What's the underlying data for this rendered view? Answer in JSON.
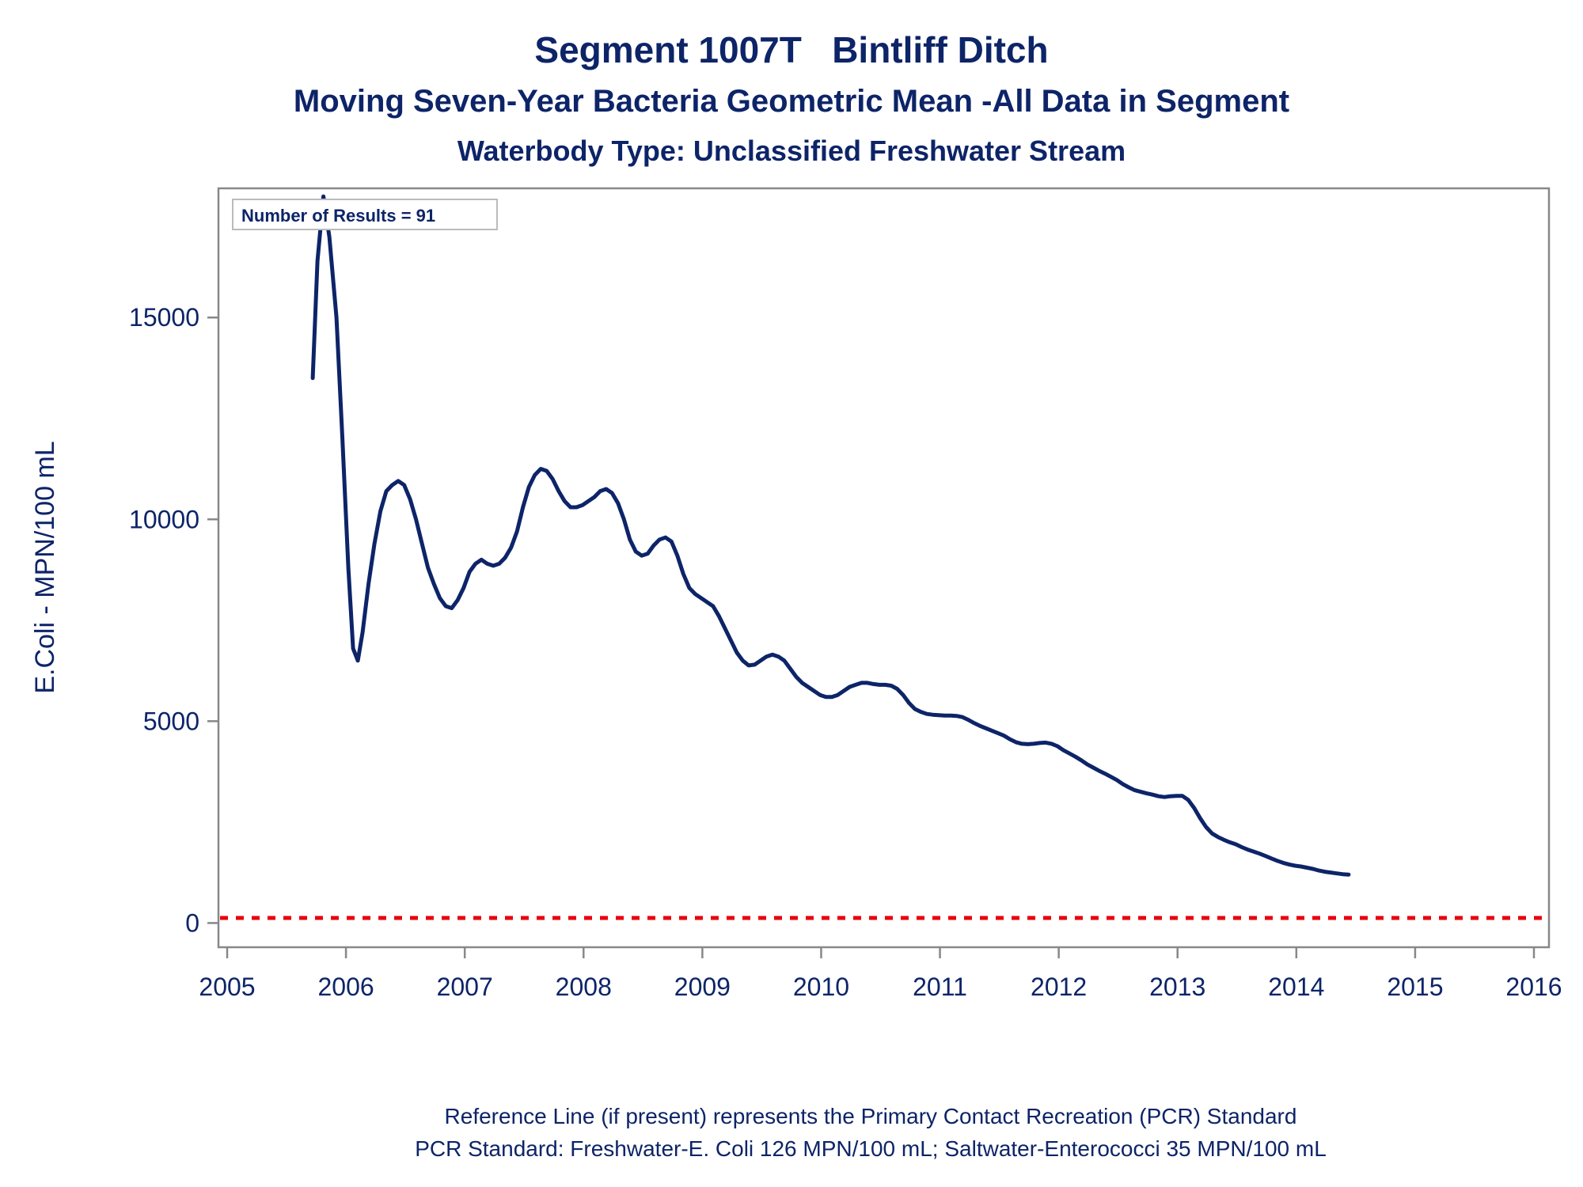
{
  "header": {
    "title": "Segment 1007T   Bintliff Ditch",
    "subtitle": "Moving Seven-Year Bacteria Geometric Mean -All Data in Segment",
    "subtitle2": "Waterbody Type: Unclassified Freshwater Stream"
  },
  "footer": {
    "line1": "Reference Line (if present) represents the Primary Contact Recreation (PCR) Standard",
    "line2": "PCR Standard: Freshwater-E. Coli 126 MPN/100 mL; Saltwater-Enterococci 35 MPN/100 mL"
  },
  "chart_data": {
    "type": "line",
    "ylabel": "E.Coli - MPN/100 mL",
    "xlabel": "",
    "annotation": "Number of Results = 91",
    "xlim": [
      2005,
      2016
    ],
    "ylim": [
      -600,
      18200
    ],
    "x_ticks": [
      "2005",
      "2006",
      "2007",
      "2008",
      "2009",
      "2010",
      "2011",
      "2012",
      "2013",
      "2014",
      "2015",
      "2016"
    ],
    "y_ticks": [
      0,
      5000,
      10000,
      15000
    ],
    "reference_line": {
      "value": 126,
      "color": "#e8000b",
      "style": "dashed"
    },
    "colors": {
      "line": "#0d2468",
      "axis": "#888888",
      "tick_text": "#0d2468"
    },
    "series": [
      {
        "points": [
          [
            2005.72,
            13500
          ],
          [
            2005.76,
            16400
          ],
          [
            2005.81,
            18000
          ],
          [
            2005.86,
            17000
          ],
          [
            2005.92,
            15000
          ],
          [
            2005.97,
            12000
          ],
          [
            2006.02,
            8800
          ],
          [
            2006.06,
            6800
          ],
          [
            2006.1,
            6500
          ],
          [
            2006.14,
            7200
          ],
          [
            2006.19,
            8400
          ],
          [
            2006.24,
            9400
          ],
          [
            2006.29,
            10200
          ],
          [
            2006.34,
            10700
          ],
          [
            2006.39,
            10850
          ],
          [
            2006.44,
            10950
          ],
          [
            2006.49,
            10850
          ],
          [
            2006.54,
            10500
          ],
          [
            2006.59,
            10000
          ],
          [
            2006.64,
            9400
          ],
          [
            2006.69,
            8800
          ],
          [
            2006.74,
            8400
          ],
          [
            2006.79,
            8050
          ],
          [
            2006.84,
            7850
          ],
          [
            2006.89,
            7800
          ],
          [
            2006.94,
            8000
          ],
          [
            2006.99,
            8300
          ],
          [
            2007.04,
            8700
          ],
          [
            2007.09,
            8900
          ],
          [
            2007.14,
            9000
          ],
          [
            2007.19,
            8900
          ],
          [
            2007.24,
            8850
          ],
          [
            2007.29,
            8900
          ],
          [
            2007.34,
            9050
          ],
          [
            2007.39,
            9300
          ],
          [
            2007.44,
            9700
          ],
          [
            2007.49,
            10300
          ],
          [
            2007.54,
            10800
          ],
          [
            2007.59,
            11100
          ],
          [
            2007.64,
            11250
          ],
          [
            2007.69,
            11200
          ],
          [
            2007.74,
            11000
          ],
          [
            2007.79,
            10700
          ],
          [
            2007.84,
            10450
          ],
          [
            2007.89,
            10300
          ],
          [
            2007.94,
            10300
          ],
          [
            2007.99,
            10350
          ],
          [
            2008.04,
            10450
          ],
          [
            2008.09,
            10550
          ],
          [
            2008.14,
            10700
          ],
          [
            2008.19,
            10750
          ],
          [
            2008.24,
            10650
          ],
          [
            2008.29,
            10400
          ],
          [
            2008.34,
            10000
          ],
          [
            2008.39,
            9500
          ],
          [
            2008.44,
            9200
          ],
          [
            2008.49,
            9100
          ],
          [
            2008.54,
            9150
          ],
          [
            2008.59,
            9350
          ],
          [
            2008.64,
            9500
          ],
          [
            2008.69,
            9550
          ],
          [
            2008.74,
            9450
          ],
          [
            2008.79,
            9100
          ],
          [
            2008.84,
            8650
          ],
          [
            2008.89,
            8300
          ],
          [
            2008.94,
            8150
          ],
          [
            2008.99,
            8050
          ],
          [
            2009.04,
            7950
          ],
          [
            2009.09,
            7850
          ],
          [
            2009.14,
            7600
          ],
          [
            2009.19,
            7300
          ],
          [
            2009.24,
            7000
          ],
          [
            2009.29,
            6700
          ],
          [
            2009.34,
            6500
          ],
          [
            2009.39,
            6380
          ],
          [
            2009.44,
            6400
          ],
          [
            2009.49,
            6500
          ],
          [
            2009.54,
            6600
          ],
          [
            2009.59,
            6650
          ],
          [
            2009.64,
            6600
          ],
          [
            2009.69,
            6500
          ],
          [
            2009.74,
            6300
          ],
          [
            2009.79,
            6100
          ],
          [
            2009.84,
            5950
          ],
          [
            2009.89,
            5850
          ],
          [
            2009.94,
            5750
          ],
          [
            2009.99,
            5650
          ],
          [
            2010.04,
            5600
          ],
          [
            2010.09,
            5600
          ],
          [
            2010.14,
            5650
          ],
          [
            2010.19,
            5750
          ],
          [
            2010.24,
            5850
          ],
          [
            2010.29,
            5900
          ],
          [
            2010.34,
            5950
          ],
          [
            2010.39,
            5950
          ],
          [
            2010.44,
            5920
          ],
          [
            2010.49,
            5900
          ],
          [
            2010.54,
            5900
          ],
          [
            2010.59,
            5880
          ],
          [
            2010.64,
            5800
          ],
          [
            2010.69,
            5650
          ],
          [
            2010.74,
            5450
          ],
          [
            2010.79,
            5300
          ],
          [
            2010.84,
            5230
          ],
          [
            2010.89,
            5180
          ],
          [
            2010.94,
            5160
          ],
          [
            2010.99,
            5150
          ],
          [
            2011.04,
            5140
          ],
          [
            2011.09,
            5140
          ],
          [
            2011.14,
            5130
          ],
          [
            2011.19,
            5100
          ],
          [
            2011.24,
            5030
          ],
          [
            2011.29,
            4950
          ],
          [
            2011.34,
            4880
          ],
          [
            2011.39,
            4820
          ],
          [
            2011.44,
            4760
          ],
          [
            2011.49,
            4700
          ],
          [
            2011.54,
            4640
          ],
          [
            2011.59,
            4550
          ],
          [
            2011.64,
            4480
          ],
          [
            2011.69,
            4440
          ],
          [
            2011.74,
            4430
          ],
          [
            2011.79,
            4440
          ],
          [
            2011.84,
            4460
          ],
          [
            2011.89,
            4470
          ],
          [
            2011.94,
            4440
          ],
          [
            2011.99,
            4380
          ],
          [
            2012.04,
            4280
          ],
          [
            2012.09,
            4200
          ],
          [
            2012.14,
            4120
          ],
          [
            2012.19,
            4030
          ],
          [
            2012.24,
            3930
          ],
          [
            2012.29,
            3850
          ],
          [
            2012.34,
            3770
          ],
          [
            2012.39,
            3700
          ],
          [
            2012.44,
            3620
          ],
          [
            2012.49,
            3540
          ],
          [
            2012.54,
            3440
          ],
          [
            2012.59,
            3360
          ],
          [
            2012.64,
            3290
          ],
          [
            2012.69,
            3250
          ],
          [
            2012.74,
            3210
          ],
          [
            2012.79,
            3180
          ],
          [
            2012.84,
            3140
          ],
          [
            2012.89,
            3120
          ],
          [
            2012.94,
            3140
          ],
          [
            2012.99,
            3150
          ],
          [
            2013.04,
            3150
          ],
          [
            2013.09,
            3050
          ],
          [
            2013.14,
            2850
          ],
          [
            2013.19,
            2600
          ],
          [
            2013.24,
            2380
          ],
          [
            2013.29,
            2220
          ],
          [
            2013.34,
            2130
          ],
          [
            2013.39,
            2060
          ],
          [
            2013.44,
            2000
          ],
          [
            2013.49,
            1950
          ],
          [
            2013.54,
            1880
          ],
          [
            2013.59,
            1820
          ],
          [
            2013.64,
            1770
          ],
          [
            2013.69,
            1720
          ],
          [
            2013.74,
            1660
          ],
          [
            2013.79,
            1600
          ],
          [
            2013.84,
            1540
          ],
          [
            2013.89,
            1490
          ],
          [
            2013.94,
            1450
          ],
          [
            2013.99,
            1420
          ],
          [
            2014.04,
            1400
          ],
          [
            2014.09,
            1370
          ],
          [
            2014.14,
            1340
          ],
          [
            2014.19,
            1300
          ],
          [
            2014.24,
            1270
          ],
          [
            2014.29,
            1250
          ],
          [
            2014.34,
            1230
          ],
          [
            2014.39,
            1210
          ],
          [
            2014.44,
            1200
          ]
        ]
      }
    ]
  }
}
